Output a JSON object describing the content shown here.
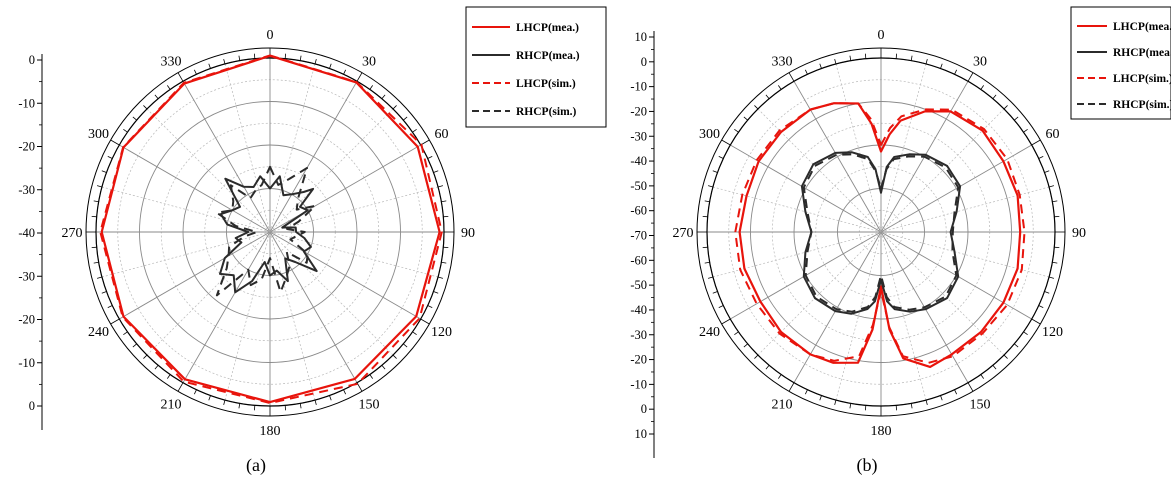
{
  "colors": {
    "red": "#e8140c",
    "dark": "#2b2b2b",
    "grid_major": "#8a8a8a",
    "grid_minor": "#b8b8b8"
  },
  "chart_data": [
    {
      "type": "polar-line",
      "caption": "(a)",
      "angle_labels": [
        "0",
        "30",
        "60",
        "90",
        "120",
        "150",
        "180",
        "210",
        "240",
        "270",
        "300",
        "330"
      ],
      "radial_tick_labels": [
        "0",
        "-10",
        "-20",
        "-30",
        "-40",
        "-30",
        "-20",
        "-10",
        "0"
      ],
      "radial_range_db": [
        -40,
        0
      ],
      "legend": [
        "LHCP(mea.)",
        "RHCP(mea.)",
        "LHCP(sim.)",
        "RHCP(sim.)"
      ],
      "series": [
        {
          "name": "LHCP(mea.)",
          "style": "red-solid",
          "angles_deg": [
            0,
            30,
            60,
            90,
            120,
            150,
            180,
            210,
            240,
            270,
            300,
            330
          ],
          "values_db": [
            0.5,
            -0.3,
            -0.8,
            -1.0,
            -1.2,
            -1.0,
            -0.9,
            -0.9,
            -1.1,
            -1.3,
            -1.1,
            -0.6
          ]
        },
        {
          "name": "RHCP(mea.)",
          "style": "dark-solid",
          "angles_deg": [
            0,
            10,
            20,
            30,
            40,
            45,
            50,
            60,
            70,
            80,
            90,
            100,
            110,
            120,
            130,
            140,
            150,
            160,
            170,
            180,
            190,
            200,
            210,
            220,
            230,
            240,
            250,
            260,
            270,
            280,
            290,
            300,
            310,
            320,
            330,
            340,
            350
          ],
          "values_db": [
            -30,
            -27,
            -31,
            -30,
            -28,
            -26,
            -31,
            -30,
            -37,
            -34,
            -34,
            -32,
            -30,
            -31,
            -26,
            -31,
            -33,
            -28,
            -31,
            -30,
            -33,
            -28,
            -24,
            -27,
            -25,
            -28,
            -33,
            -32,
            -35,
            -30,
            -28,
            -30,
            -31,
            -24,
            -28,
            -29,
            -27
          ]
        },
        {
          "name": "LHCP(sim.)",
          "style": "red-dashed",
          "angles_deg": [
            0,
            30,
            60,
            90,
            120,
            150,
            180,
            210,
            240,
            270,
            300,
            330
          ],
          "values_db": [
            0.6,
            -0.2,
            0.2,
            -0.5,
            -0.3,
            0.3,
            -0.7,
            -0.3,
            -0.9,
            -1.0,
            -1.0,
            -0.4
          ]
        },
        {
          "name": "RHCP(sim.)",
          "style": "dark-dashed",
          "angles_deg": [
            0,
            10,
            20,
            30,
            40,
            50,
            60,
            70,
            80,
            90,
            100,
            110,
            120,
            130,
            140,
            150,
            160,
            170,
            180,
            190,
            200,
            210,
            220,
            230,
            240,
            250,
            260,
            270,
            280,
            290,
            300,
            310,
            320,
            330,
            340,
            350
          ],
          "values_db": [
            -25,
            -29,
            -27,
            -23,
            -30,
            -32,
            -28,
            -33,
            -36,
            -32,
            -34,
            -35,
            -30,
            -29,
            -34,
            -31,
            -29,
            -26,
            -34,
            -29,
            -27,
            -30,
            -21,
            -27,
            -29,
            -30,
            -34,
            -37,
            -32,
            -27,
            -30,
            -29,
            -26,
            -31,
            -30,
            -29
          ]
        }
      ]
    },
    {
      "type": "polar-line",
      "caption": "(b)",
      "angle_labels": [
        "0",
        "30",
        "60",
        "90",
        "120",
        "150",
        "180",
        "210",
        "240",
        "270",
        "300",
        "330"
      ],
      "radial_tick_labels": [
        "10",
        "0",
        "-10",
        "-20",
        "-30",
        "-40",
        "-50",
        "-60",
        "-70",
        "-60",
        "-50",
        "-40",
        "-30",
        "-20",
        "-10",
        "0",
        "10"
      ],
      "radial_range_db": [
        -70,
        10
      ],
      "legend": [
        "LHCP(mea.)",
        "RHCP(mea.)",
        "LHCP(sim.)",
        "RHCP(sim.)"
      ],
      "series": [
        {
          "name": "LHCP(mea.)",
          "style": "red-solid",
          "angles_deg": [
            0,
            5,
            10,
            20,
            30,
            45,
            60,
            75,
            90,
            105,
            120,
            135,
            150,
            160,
            170,
            175,
            180,
            185,
            190,
            200,
            210,
            225,
            240,
            255,
            270,
            285,
            300,
            315,
            330,
            340,
            350,
            355
          ],
          "values_db": [
            -33,
            -25,
            -18,
            -11,
            -6,
            -4,
            -5,
            -5,
            -6,
            -5,
            -5,
            -5,
            -5,
            -4,
            -11,
            -25,
            -45,
            -25,
            -9,
            -6,
            -5,
            -5,
            -6,
            -5,
            -5,
            -6,
            -5,
            -5,
            -5,
            -7,
            -10,
            -20
          ]
        },
        {
          "name": "RHCP(mea.)",
          "style": "dark-solid",
          "angles_deg": [
            0,
            5,
            10,
            20,
            30,
            45,
            60,
            75,
            90,
            105,
            120,
            135,
            150,
            160,
            170,
            175,
            180,
            185,
            190,
            200,
            210,
            225,
            240,
            255,
            270,
            285,
            300,
            315,
            330,
            340,
            350,
            355
          ],
          "values_db": [
            -52,
            -40,
            -35,
            -32,
            -29,
            -27,
            -28,
            -34,
            -38,
            -35,
            -29,
            -27,
            -29,
            -31,
            -34,
            -38,
            -48,
            -38,
            -34,
            -30,
            -28,
            -27,
            -29,
            -34,
            -38,
            -34,
            -28,
            -26,
            -28,
            -31,
            -35,
            -41
          ]
        },
        {
          "name": "LHCP(sim.)",
          "style": "red-dashed",
          "angles_deg": [
            0,
            5,
            10,
            20,
            30,
            45,
            60,
            75,
            90,
            105,
            120,
            135,
            150,
            160,
            170,
            175,
            180,
            185,
            190,
            200,
            210,
            225,
            240,
            255,
            270,
            285,
            300,
            315,
            330,
            340,
            350,
            355
          ],
          "values_db": [
            -30,
            -22,
            -16,
            -10,
            -5,
            -3,
            -3,
            -4,
            -4,
            -3,
            -3,
            -4,
            -4,
            -6,
            -12,
            -26,
            -43,
            -27,
            -12,
            -7,
            -5,
            -4,
            -4,
            -3,
            -3,
            -4,
            -4,
            -4,
            -5,
            -7,
            -10,
            -18
          ]
        },
        {
          "name": "RHCP(sim.)",
          "style": "dark-dashed",
          "angles_deg": [
            0,
            5,
            10,
            20,
            30,
            45,
            60,
            75,
            90,
            105,
            120,
            135,
            150,
            160,
            170,
            175,
            180,
            185,
            190,
            200,
            210,
            225,
            240,
            255,
            270,
            285,
            300,
            315,
            330,
            340,
            350,
            355
          ],
          "values_db": [
            -50,
            -41,
            -36,
            -33,
            -30,
            -28,
            -29,
            -35,
            -37,
            -36,
            -30,
            -28,
            -30,
            -32,
            -35,
            -40,
            -50,
            -40,
            -35,
            -31,
            -29,
            -28,
            -30,
            -35,
            -38,
            -35,
            -29,
            -27,
            -29,
            -32,
            -36,
            -42
          ]
        }
      ]
    }
  ]
}
